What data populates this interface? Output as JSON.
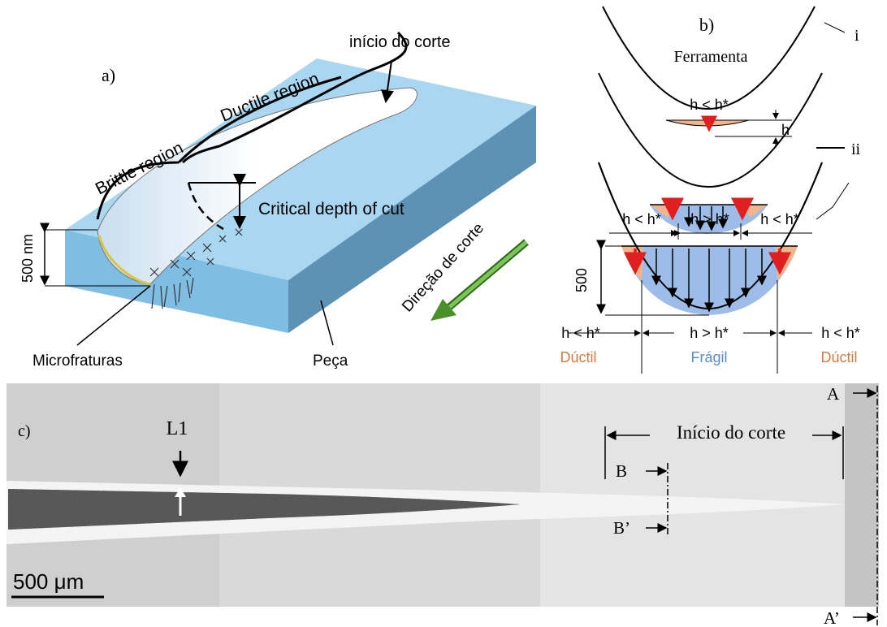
{
  "panel_a": {
    "label": "a)",
    "start": "início do corte",
    "ductile": "Ductile region",
    "brittle": "Brittle region",
    "critical": "Critical depth of cut",
    "depth": "500 nm",
    "direction": "Direção de corte",
    "microfractures": "Microfraturas",
    "piece": "Peça"
  },
  "panel_b": {
    "label": "b)",
    "tool": "Ferramenta",
    "marker_i": "i",
    "marker_ii": "ii",
    "top_condition": "h < h*",
    "h": "h",
    "middle_row": [
      "h < h*",
      "h > h*",
      "h < h*"
    ],
    "depth": "500",
    "bottom_row": [
      "h < h*",
      "h > h*",
      "h < h*"
    ],
    "modes": [
      "Dúctil",
      "Frágil",
      "Dúctil"
    ]
  },
  "panel_c": {
    "label": "c)",
    "line": "L1",
    "start": "Início do corte",
    "a": "A",
    "a_prime": "A’",
    "b": "B",
    "b_prime": "B’",
    "scale": "500 μm"
  }
}
